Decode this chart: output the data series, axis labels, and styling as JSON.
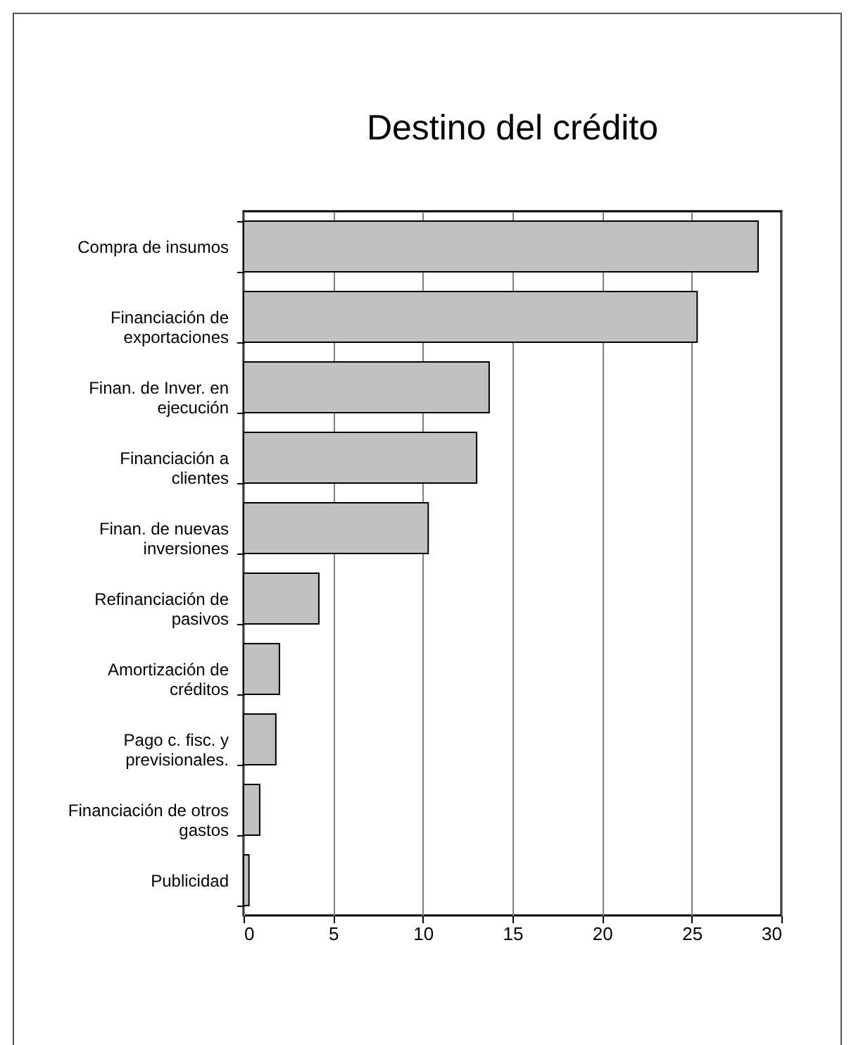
{
  "chart_data": {
    "type": "bar",
    "orientation": "horizontal",
    "title": "Destino del crédito",
    "categories": [
      "Compra de insumos",
      "Financiación de exportaciones",
      "Finan. de Inver.  en ejecución",
      "Financiación a clientes",
      "Finan. de nuevas inversiones",
      "Refinanciación de pasivos",
      "Amortización de créditos",
      "Pago c. fisc. y previsionales.",
      "Financiación de otros gastos",
      "Publicidad"
    ],
    "values": [
      28.7,
      25.3,
      13.7,
      13.0,
      10.3,
      4.2,
      2.0,
      1.8,
      0.9,
      0.3
    ],
    "color": "#c0c0c0",
    "xlim": [
      0,
      30
    ],
    "xticks": [
      0,
      5,
      10,
      15,
      20,
      25,
      30
    ],
    "grid": "x"
  }
}
